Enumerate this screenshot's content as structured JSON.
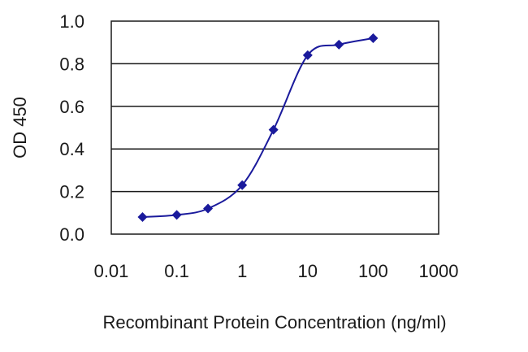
{
  "chart_data": {
    "type": "scatter",
    "title": "",
    "xlabel": "Recombinant Protein Concentration (ng/ml)",
    "ylabel": "OD 450",
    "x_scale": "log",
    "xlim": [
      0.01,
      1000
    ],
    "ylim": [
      0.0,
      1.0
    ],
    "x_ticks": [
      0.01,
      0.1,
      1,
      10,
      100,
      1000
    ],
    "x_tick_labels": [
      "0.01",
      "0.1",
      "1",
      "10",
      "100",
      "1000"
    ],
    "y_ticks": [
      0.0,
      0.2,
      0.4,
      0.6,
      0.8,
      1.0
    ],
    "y_tick_labels": [
      "0.0",
      "0.2",
      "0.4",
      "0.6",
      "0.8",
      "1.0"
    ],
    "grid": "horizontal",
    "series": [
      {
        "color": "#1a1a9c",
        "marker": "diamond",
        "x": [
          0.03,
          0.1,
          0.3,
          1,
          3,
          10,
          30,
          100
        ],
        "y": [
          0.08,
          0.09,
          0.12,
          0.23,
          0.49,
          0.84,
          0.89,
          0.92
        ]
      }
    ]
  }
}
